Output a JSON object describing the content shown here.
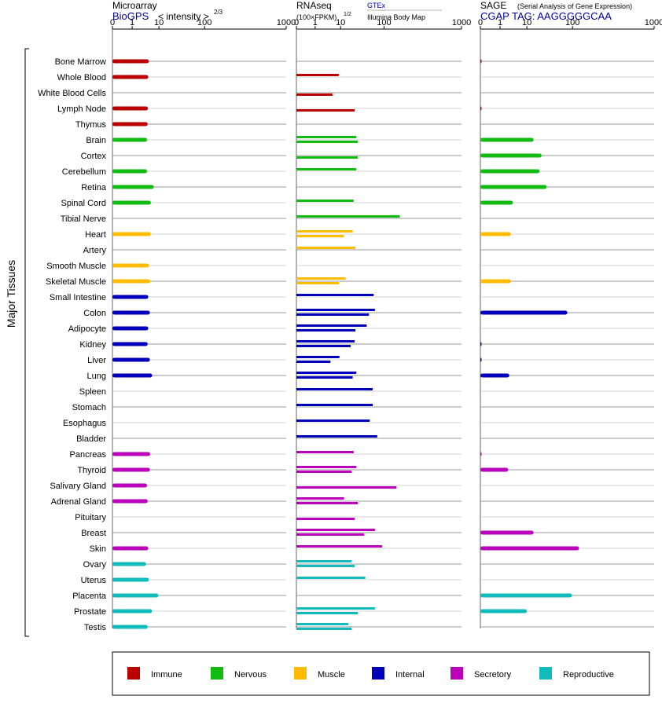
{
  "header": {
    "microarray": {
      "title": "Microarray",
      "source": "BioGPS",
      "scale_label": "< intensity >",
      "scale_exp": "2/3"
    },
    "rnaseq": {
      "title": "RNAseq",
      "unit": "(100×FPKM)",
      "unit_exp": "1/2",
      "gtex": "GTEx",
      "bodymap": "Illumina Body Map"
    },
    "sage": {
      "title": "SAGE",
      "subtitle": "(Serial Analysis of Gene Expression)",
      "tag": "CGAP TAG: AAGGGGGCAA"
    }
  },
  "axis_title": "Major Tissues",
  "legend": [
    {
      "key": "immune",
      "label": "Immune",
      "color": "#bb0000"
    },
    {
      "key": "nervous",
      "label": "Nervous",
      "color": "#11bb11"
    },
    {
      "key": "muscle",
      "label": "Muscle",
      "color": "#ffbb00"
    },
    {
      "key": "internal",
      "label": "Internal",
      "color": "#0000bb"
    },
    {
      "key": "secretory",
      "label": "Secretory",
      "color": "#bb00bb"
    },
    {
      "key": "reproductive",
      "label": "Reproductive",
      "color": "#11bbbb"
    }
  ],
  "colors": {
    "immune": "#bb0000",
    "nervous": "#11bb11",
    "muscle": "#ffbb00",
    "internal": "#0000bb",
    "secretory": "#bb00bb",
    "reproductive": "#11bbbb",
    "blue_text": "#000099"
  },
  "chart_data": {
    "type": "bar",
    "scale": "log-like (0, 1, 10, 100, 1000)",
    "tick_labels": [
      "0",
      "1",
      "10",
      "100",
      "1000"
    ],
    "categories": [
      "Bone Marrow",
      "Whole Blood",
      "White Blood Cells",
      "Lymph Node",
      "Thymus",
      "Brain",
      "Cortex",
      "Cerebellum",
      "Retina",
      "Spinal Cord",
      "Tibial Nerve",
      "Heart",
      "Artery",
      "Smooth Muscle",
      "Skeletal Muscle",
      "Small Intestine",
      "Colon",
      "Adipocyte",
      "Kidney",
      "Liver",
      "Lung",
      "Spleen",
      "Stomach",
      "Esophagus",
      "Bladder",
      "Pancreas",
      "Thyroid",
      "Salivary Gland",
      "Adrenal Gland",
      "Pituitary",
      "Breast",
      "Skin",
      "Ovary",
      "Uterus",
      "Placenta",
      "Prostate",
      "Testis"
    ],
    "groups": [
      "immune",
      "immune",
      "immune",
      "immune",
      "immune",
      "nervous",
      "nervous",
      "nervous",
      "nervous",
      "nervous",
      "nervous",
      "muscle",
      "muscle",
      "muscle",
      "muscle",
      "internal",
      "internal",
      "internal",
      "internal",
      "internal",
      "internal",
      "internal",
      "internal",
      "internal",
      "internal",
      "secretory",
      "secretory",
      "secretory",
      "secretory",
      "secretory",
      "secretory",
      "secretory",
      "reproductive",
      "reproductive",
      "reproductive",
      "reproductive",
      "reproductive"
    ],
    "series": [
      {
        "name": "Microarray",
        "values": [
          4.2,
          4.0,
          null,
          3.9,
          3.8,
          3.6,
          null,
          3.6,
          6.4,
          5.0,
          null,
          4.9,
          null,
          4.3,
          4.7,
          4.0,
          4.6,
          4.0,
          3.8,
          4.6,
          5.6,
          null,
          null,
          null,
          null,
          4.7,
          4.6,
          3.6,
          3.8,
          null,
          null,
          4.0,
          3.3,
          4.2,
          9.5,
          5.5,
          3.8
        ]
      },
      {
        "name": "GTEx",
        "values": [
          null,
          8.5,
          null,
          null,
          null,
          23,
          null,
          23,
          null,
          20,
          160,
          19,
          22,
          null,
          13,
          58,
          62,
          40,
          21,
          9,
          23,
          55,
          55,
          47,
          70,
          20,
          23,
          null,
          12,
          null,
          62,
          91,
          18,
          37,
          null,
          62,
          15
        ]
      },
      {
        "name": "Illumina Body Map",
        "values": [
          null,
          null,
          4.8,
          21,
          null,
          25,
          25,
          null,
          null,
          null,
          null,
          12,
          null,
          null,
          8.5,
          null,
          45,
          22,
          17,
          4.0,
          19,
          null,
          null,
          null,
          null,
          null,
          18,
          145,
          25,
          21,
          35,
          null,
          21,
          null,
          null,
          25,
          18
        ]
      },
      {
        "name": "SAGE",
        "values": [
          0.05,
          null,
          null,
          0.05,
          null,
          14,
          21,
          19,
          27,
          3.0,
          null,
          2.5,
          null,
          null,
          2.5,
          null,
          77,
          null,
          0.03,
          0.03,
          2.2,
          null,
          null,
          null,
          null,
          0.03,
          2.0,
          null,
          null,
          null,
          14,
          120,
          null,
          null,
          97,
          10,
          null
        ]
      }
    ]
  }
}
